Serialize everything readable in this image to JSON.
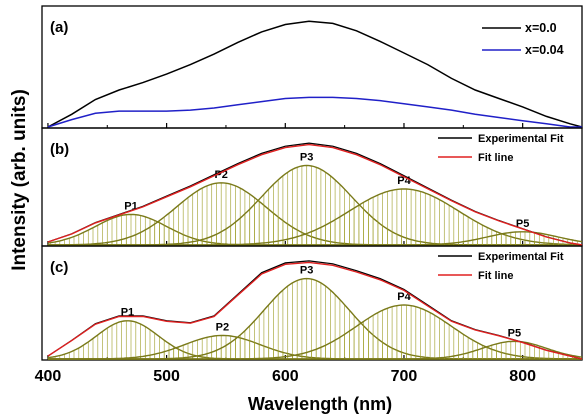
{
  "chart_data": {
    "type": "line",
    "xlabel": "Wavelength (nm)",
    "ylabel": "Intensity (arb. units)",
    "xlim": [
      395,
      850
    ],
    "xticks": [
      400,
      500,
      600,
      700,
      800
    ],
    "xtick_labels": [
      "400",
      "500",
      "600",
      "700",
      "800"
    ],
    "panels": [
      {
        "label": "(a)",
        "ylim": [
          0,
          1.05
        ],
        "legend_position": "top-right",
        "series": [
          {
            "name": "x=0.0",
            "color": "#000000",
            "x": [
              400,
              420,
              440,
              460,
              480,
              500,
              520,
              540,
              560,
              580,
              600,
              620,
              640,
              660,
              680,
              700,
              720,
              740,
              760,
              780,
              800,
              820,
              840,
              850
            ],
            "y": [
              0.0,
              0.12,
              0.26,
              0.35,
              0.42,
              0.5,
              0.59,
              0.69,
              0.8,
              0.9,
              0.97,
              1.0,
              0.98,
              0.91,
              0.81,
              0.7,
              0.59,
              0.46,
              0.35,
              0.27,
              0.19,
              0.1,
              0.03,
              0.0
            ]
          },
          {
            "name": "x=0.04",
            "color": "#2020c8",
            "x": [
              400,
              420,
              440,
              460,
              480,
              500,
              520,
              540,
              560,
              580,
              600,
              620,
              640,
              660,
              680,
              700,
              720,
              740,
              760,
              780,
              800,
              820,
              840,
              850
            ],
            "y": [
              0.0,
              0.07,
              0.13,
              0.15,
              0.15,
              0.15,
              0.16,
              0.18,
              0.21,
              0.24,
              0.27,
              0.28,
              0.28,
              0.27,
              0.25,
              0.22,
              0.19,
              0.16,
              0.12,
              0.09,
              0.06,
              0.03,
              0.0,
              0.0
            ]
          }
        ]
      },
      {
        "label": "(b)",
        "ylim": [
          0,
          1.05
        ],
        "legend_position": "top-right",
        "legend": [
          {
            "name": "Experimental Fit",
            "color": "#000000"
          },
          {
            "name": "Fit line",
            "color": "#e02020"
          }
        ],
        "fit_line": {
          "x": [
            400,
            420,
            440,
            460,
            480,
            500,
            520,
            540,
            560,
            580,
            600,
            620,
            640,
            660,
            680,
            700,
            720,
            740,
            760,
            780,
            800,
            820,
            840,
            850
          ],
          "y": [
            0.03,
            0.11,
            0.22,
            0.3,
            0.38,
            0.48,
            0.58,
            0.69,
            0.8,
            0.9,
            0.97,
            1.0,
            0.97,
            0.9,
            0.8,
            0.68,
            0.56,
            0.44,
            0.33,
            0.24,
            0.16,
            0.08,
            0.02,
            0.0
          ]
        },
        "peaks": [
          {
            "name": "P1",
            "center": 470,
            "amplitude": 0.3,
            "sigma": 30
          },
          {
            "name": "P2",
            "center": 546,
            "amplitude": 0.61,
            "sigma": 38
          },
          {
            "name": "P3",
            "center": 618,
            "amplitude": 0.78,
            "sigma": 38
          },
          {
            "name": "P4",
            "center": 700,
            "amplitude": 0.55,
            "sigma": 46
          },
          {
            "name": "P5",
            "center": 800,
            "amplitude": 0.13,
            "sigma": 30
          }
        ]
      },
      {
        "label": "(c)",
        "ylim": [
          0,
          1.05
        ],
        "legend_position": "top-right",
        "legend": [
          {
            "name": "Experimental Fit",
            "color": "#000000"
          },
          {
            "name": "Fit line",
            "color": "#e02020"
          }
        ],
        "fit_line": {
          "x": [
            400,
            420,
            440,
            460,
            480,
            500,
            520,
            540,
            560,
            580,
            600,
            620,
            640,
            660,
            680,
            700,
            720,
            740,
            760,
            780,
            800,
            820,
            840,
            850
          ],
          "y": [
            0.03,
            0.19,
            0.36,
            0.44,
            0.44,
            0.39,
            0.37,
            0.44,
            0.66,
            0.88,
            0.98,
            1.0,
            0.97,
            0.9,
            0.82,
            0.71,
            0.55,
            0.39,
            0.3,
            0.24,
            0.17,
            0.09,
            0.03,
            0.0
          ]
        },
        "peaks": [
          {
            "name": "P1",
            "center": 467,
            "amplitude": 0.39,
            "sigma": 26
          },
          {
            "name": "P2",
            "center": 547,
            "amplitude": 0.24,
            "sigma": 32
          },
          {
            "name": "P3",
            "center": 618,
            "amplitude": 0.82,
            "sigma": 36
          },
          {
            "name": "P4",
            "center": 700,
            "amplitude": 0.55,
            "sigma": 40
          },
          {
            "name": "P5",
            "center": 793,
            "amplitude": 0.18,
            "sigma": 27
          }
        ]
      }
    ]
  }
}
